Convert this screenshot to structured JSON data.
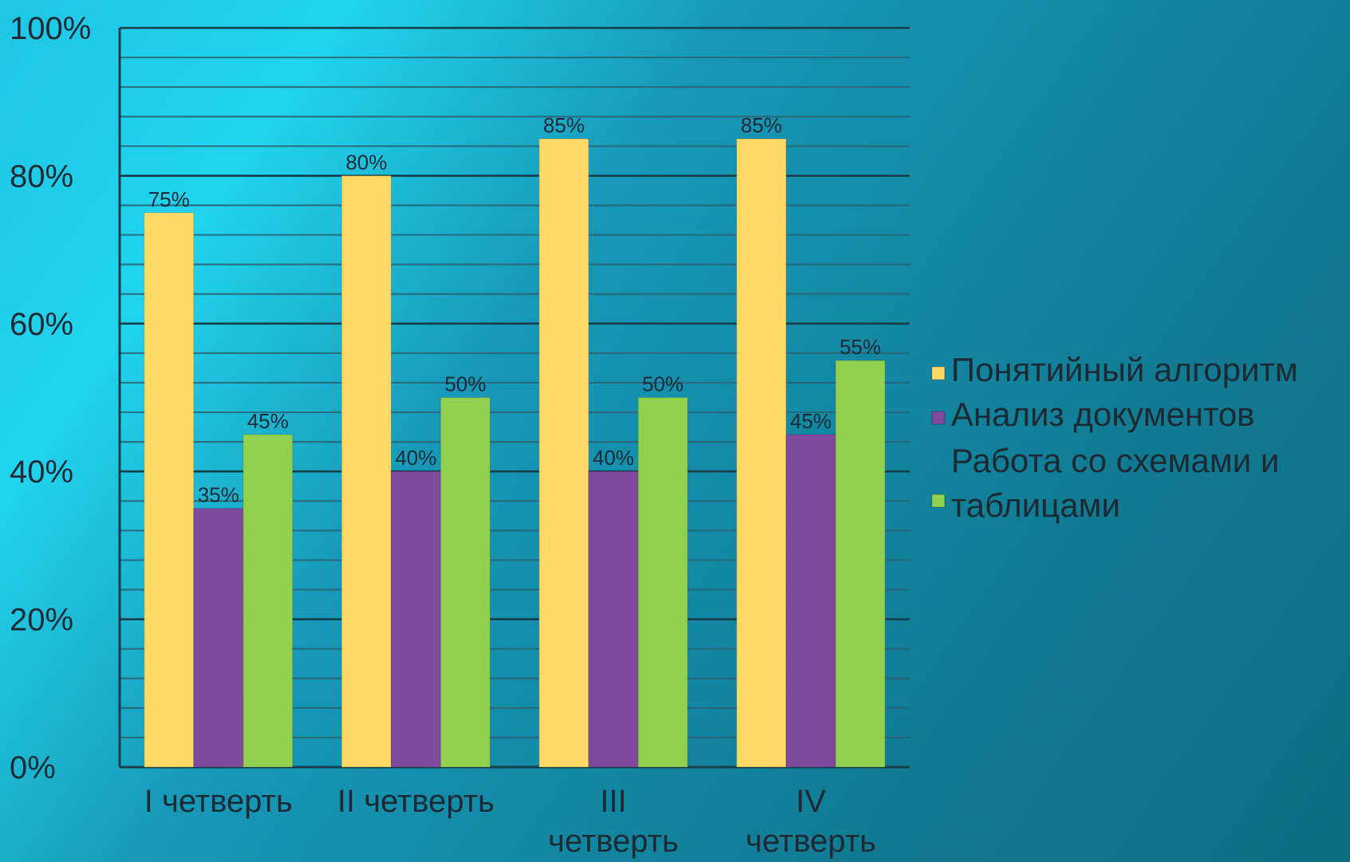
{
  "chart_data": {
    "type": "bar",
    "title": "",
    "xlabel": "",
    "ylabel": "",
    "ylim": [
      0,
      100
    ],
    "ytick_step": 20,
    "minor_grid_step": 4,
    "ytick_format": "{v}%",
    "grid": true,
    "legend_position": "right",
    "categories": [
      [
        "I четверть"
      ],
      [
        "II четверть"
      ],
      [
        "III",
        "четверть"
      ],
      [
        "IV",
        "четверть"
      ]
    ],
    "series": [
      {
        "name": "Понятийный алгоритм",
        "color": "#ffd966",
        "values": [
          75,
          80,
          85,
          85
        ],
        "labels": [
          "75%",
          "80%",
          "85%",
          "85%"
        ]
      },
      {
        "name": "Анализ документов",
        "color": "#7d4a9e",
        "values": [
          35,
          40,
          40,
          45
        ],
        "labels": [
          "35%",
          "40%",
          "40%",
          "45%"
        ]
      },
      {
        "name": "Работа со схемами и таблицами",
        "legend_lines": [
          "Работа со схемами и",
          "таблицами"
        ],
        "color": "#92d050",
        "values": [
          45,
          50,
          50,
          55
        ],
        "labels": [
          "45%",
          "50%",
          "50%",
          "55%"
        ]
      }
    ]
  }
}
